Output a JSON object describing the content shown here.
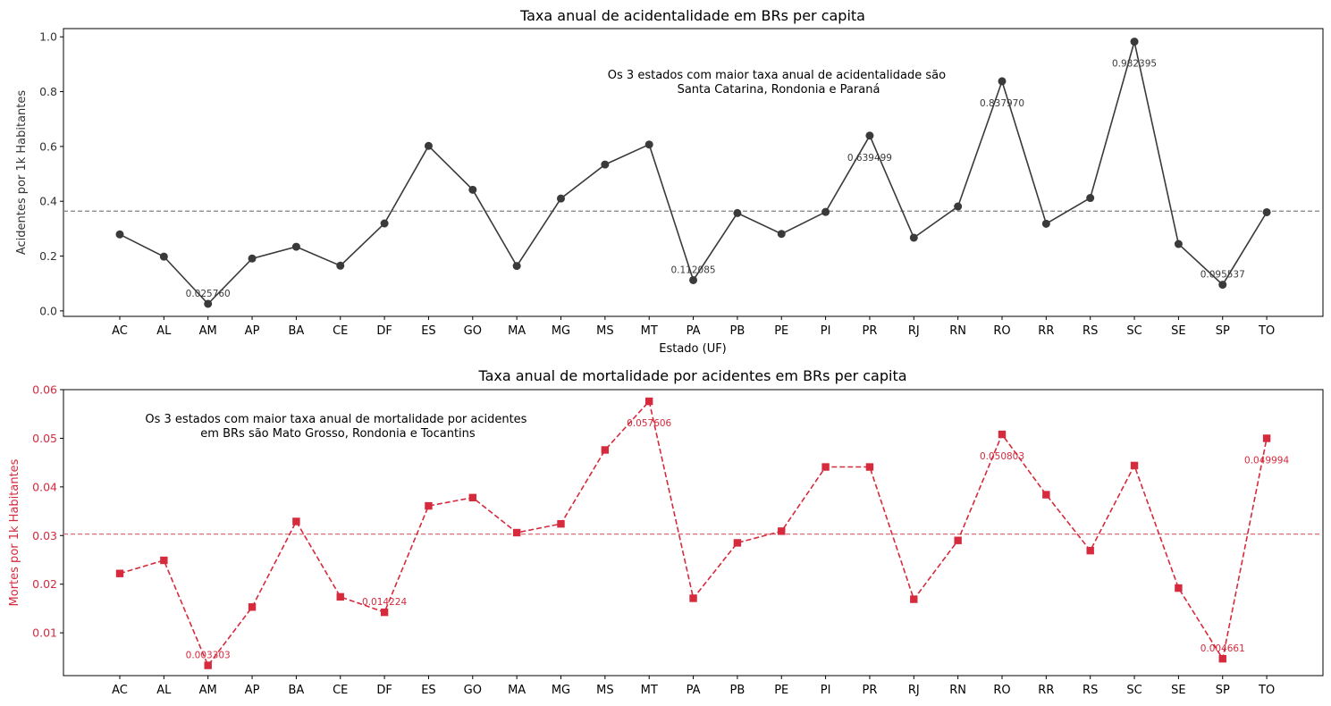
{
  "chart_data": [
    {
      "type": "line",
      "title": "Taxa anual de acidentalidade em BRs per capita",
      "xlabel": "Estado (UF)",
      "ylabel": "Acidentes por 1k Habitantes",
      "categories": [
        "AC",
        "AL",
        "AM",
        "AP",
        "BA",
        "CE",
        "DF",
        "ES",
        "GO",
        "MA",
        "MG",
        "MS",
        "MT",
        "PA",
        "PB",
        "PE",
        "PI",
        "PR",
        "RJ",
        "RN",
        "RO",
        "RR",
        "RS",
        "SC",
        "SE",
        "SP",
        "TO"
      ],
      "series": [
        {
          "values": [
            0.279,
            0.198,
            0.02576,
            0.191,
            0.234,
            0.165,
            0.319,
            0.602,
            0.442,
            0.164,
            0.41,
            0.534,
            0.607,
            0.112085,
            0.357,
            0.281,
            0.361,
            0.639499,
            0.267,
            0.381,
            0.83797,
            0.318,
            0.412,
            0.982395,
            0.244,
            0.095537,
            0.36
          ]
        }
      ],
      "mean_line": 0.364,
      "ylim": [
        -0.02,
        1.03
      ],
      "yticks": [
        "0.0",
        "0.2",
        "0.4",
        "0.6",
        "0.8",
        "1.0"
      ],
      "ytick_values": [
        0,
        0.2,
        0.4,
        0.6,
        0.8,
        1.0
      ],
      "point_labels": [
        {
          "category": "AM",
          "text": "0.025760",
          "value": 0.02576,
          "pos": "above"
        },
        {
          "category": "PA",
          "text": "0.112085",
          "value": 0.112085,
          "pos": "above"
        },
        {
          "category": "SP",
          "text": "0.095537",
          "value": 0.095537,
          "pos": "above"
        },
        {
          "category": "PR",
          "text": "0.639499",
          "value": 0.639499,
          "pos": "below"
        },
        {
          "category": "RO",
          "text": "0.837970",
          "value": 0.83797,
          "pos": "below"
        },
        {
          "category": "SC",
          "text": "0.982395",
          "value": 0.982395,
          "pos": "below"
        }
      ],
      "annotation": [
        "Os 3 estados com maior taxa anual de acidentalidade são",
        "Santa Catarina, Rondonia e Paraná"
      ],
      "color": "#3a3a3a",
      "mean_color": "#808080",
      "marker": "circle",
      "linestyle": "solid",
      "grid": false
    },
    {
      "type": "line",
      "title": "Taxa anual de mortalidade por acidentes em BRs per capita",
      "xlabel": "",
      "ylabel": "Mortes por 1k Habitantes",
      "categories": [
        "AC",
        "AL",
        "AM",
        "AP",
        "BA",
        "CE",
        "DF",
        "ES",
        "GO",
        "MA",
        "MG",
        "MS",
        "MT",
        "PA",
        "PB",
        "PE",
        "PI",
        "PR",
        "RJ",
        "RN",
        "RO",
        "RR",
        "RS",
        "SC",
        "SE",
        "SP",
        "TO"
      ],
      "series": [
        {
          "values": [
            0.0222,
            0.0249,
            0.003303,
            0.0153,
            0.0329,
            0.0174,
            0.014224,
            0.0361,
            0.0378,
            0.0306,
            0.0324,
            0.0476,
            0.057606,
            0.0171,
            0.0285,
            0.0309,
            0.0441,
            0.0441,
            0.0169,
            0.029,
            0.050803,
            0.0384,
            0.0269,
            0.0444,
            0.0192,
            0.004661,
            0.049994
          ]
        }
      ],
      "mean_line": 0.0303,
      "ylim": [
        0.0012,
        0.06
      ],
      "yticks": [
        "0.01",
        "0.02",
        "0.03",
        "0.04",
        "0.05",
        "0.06"
      ],
      "ytick_values": [
        0.01,
        0.02,
        0.03,
        0.04,
        0.05,
        0.06
      ],
      "point_labels": [
        {
          "category": "AM",
          "text": "0.003303",
          "value": 0.003303,
          "pos": "above"
        },
        {
          "category": "DF",
          "text": "0.014224",
          "value": 0.014224,
          "pos": "above"
        },
        {
          "category": "SP",
          "text": "0.004661",
          "value": 0.004661,
          "pos": "above"
        },
        {
          "category": "MT",
          "text": "0.057606",
          "value": 0.057606,
          "pos": "below"
        },
        {
          "category": "RO",
          "text": "0.050803",
          "value": 0.050803,
          "pos": "below"
        },
        {
          "category": "TO",
          "text": "0.049994",
          "value": 0.049994,
          "pos": "below"
        }
      ],
      "annotation": [
        "Os 3 estados com maior taxa anual de mortalidade por acidentes",
        "em BRs são Mato Grosso, Rondonia e Tocantins"
      ],
      "color": "#d62a3d",
      "mean_color": "#e06a72",
      "marker": "square",
      "linestyle": "dashed",
      "grid": false
    }
  ]
}
